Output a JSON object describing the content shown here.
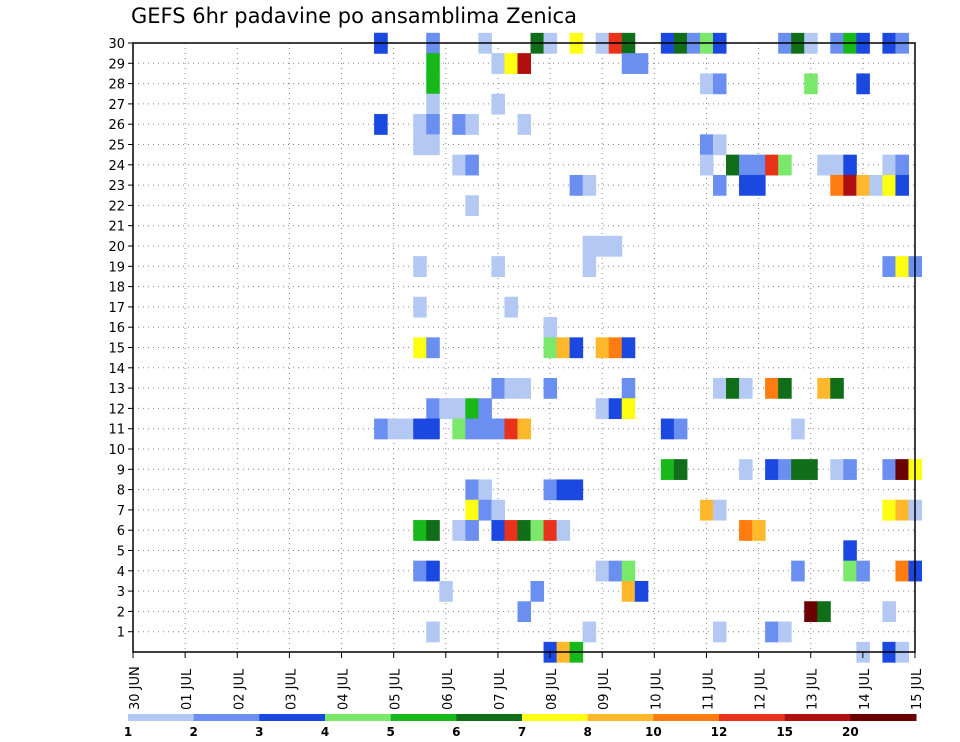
{
  "chart_data": {
    "type": "heatmap",
    "title": "GEFS 6hr padavine po ansamblima Zenica",
    "xlabel": "",
    "ylabel": "",
    "x_tick_labels": [
      "30 JUN",
      "01 JUL",
      "02 JUL",
      "03 JUL",
      "04 JUL",
      "05 JUL",
      "06 JUL",
      "07 JUL",
      "08 JUL",
      "09 JUL",
      "10 JUL",
      "11 JUL",
      "12 JUL",
      "13 JUL",
      "14 JUL",
      "15 JUL"
    ],
    "y_tick_labels": [
      "1",
      "2",
      "3",
      "4",
      "5",
      "6",
      "7",
      "8",
      "9",
      "10",
      "11",
      "12",
      "13",
      "14",
      "15",
      "16",
      "17",
      "18",
      "19",
      "20",
      "21",
      "22",
      "23",
      "24",
      "25",
      "26",
      "27",
      "28",
      "29",
      "30"
    ],
    "x_range_days": [
      0,
      15
    ],
    "y_range": [
      0,
      30
    ],
    "grid": true,
    "legend": {
      "position": "bottom",
      "labels": [
        "1",
        "2",
        "3",
        "4",
        "5",
        "6",
        "7",
        "8",
        "10",
        "12",
        "15",
        "20"
      ],
      "colors": [
        "#b3c8f2",
        "#6b8ff0",
        "#1a48e0",
        "#7ae86a",
        "#17b81a",
        "#0f6e17",
        "#ffff12",
        "#ffb72c",
        "#ff7d10",
        "#e8321a",
        "#b00f0f",
        "#6b0000"
      ]
    },
    "cells": [
      [
        4.75,
        30,
        2
      ],
      [
        4.75,
        30,
        2
      ],
      [
        5.75,
        30,
        0
      ],
      [
        5.75,
        30,
        1
      ],
      [
        6.75,
        30,
        0
      ],
      [
        7.75,
        30,
        5
      ],
      [
        8.0,
        30,
        0
      ],
      [
        8.5,
        30,
        6
      ],
      [
        9.0,
        30,
        0
      ],
      [
        9.25,
        30,
        9
      ],
      [
        9.5,
        30,
        5
      ],
      [
        10.25,
        30,
        2
      ],
      [
        10.5,
        30,
        5
      ],
      [
        10.75,
        30,
        1
      ],
      [
        11.0,
        30,
        3
      ],
      [
        11.25,
        30,
        2
      ],
      [
        12.5,
        30,
        1
      ],
      [
        12.75,
        30,
        5
      ],
      [
        13.0,
        30,
        0
      ],
      [
        13.5,
        30,
        1
      ],
      [
        13.75,
        30,
        4
      ],
      [
        14.0,
        30,
        2
      ],
      [
        14.5,
        30,
        2
      ],
      [
        14.75,
        30,
        1
      ],
      [
        5.75,
        29,
        4
      ],
      [
        7.0,
        29,
        0
      ],
      [
        7.25,
        29,
        6
      ],
      [
        7.5,
        29,
        10
      ],
      [
        9.5,
        29,
        1
      ],
      [
        9.75,
        29,
        1
      ],
      [
        5.75,
        28,
        4
      ],
      [
        11.0,
        28,
        0
      ],
      [
        11.25,
        28,
        1
      ],
      [
        13.0,
        28,
        3
      ],
      [
        14.0,
        28,
        2
      ],
      [
        5.75,
        27,
        0
      ],
      [
        7.0,
        27,
        0
      ],
      [
        4.75,
        26,
        2
      ],
      [
        5.5,
        26,
        0
      ],
      [
        5.75,
        26,
        1
      ],
      [
        6.25,
        26,
        1
      ],
      [
        6.5,
        26,
        0
      ],
      [
        7.5,
        26,
        0
      ],
      [
        5.5,
        25,
        0
      ],
      [
        5.75,
        25,
        0
      ],
      [
        11.0,
        25,
        1
      ],
      [
        11.25,
        25,
        0
      ],
      [
        6.25,
        24,
        0
      ],
      [
        6.5,
        24,
        1
      ],
      [
        11.0,
        24,
        0
      ],
      [
        11.5,
        24,
        5
      ],
      [
        11.75,
        24,
        1
      ],
      [
        12.0,
        24,
        1
      ],
      [
        12.25,
        24,
        9
      ],
      [
        12.5,
        24,
        3
      ],
      [
        13.25,
        24,
        0
      ],
      [
        13.5,
        24,
        0
      ],
      [
        13.75,
        24,
        2
      ],
      [
        14.5,
        24,
        0
      ],
      [
        14.75,
        24,
        1
      ],
      [
        8.5,
        23,
        1
      ],
      [
        8.75,
        23,
        0
      ],
      [
        11.25,
        23,
        1
      ],
      [
        11.75,
        23,
        2
      ],
      [
        12.0,
        23,
        2
      ],
      [
        13.5,
        23,
        8
      ],
      [
        13.75,
        23,
        10
      ],
      [
        14.0,
        23,
        7
      ],
      [
        14.25,
        23,
        0
      ],
      [
        14.5,
        23,
        6
      ],
      [
        14.75,
        23,
        2
      ],
      [
        6.5,
        22,
        0
      ],
      [
        8.75,
        20,
        0
      ],
      [
        9.0,
        20,
        0
      ],
      [
        9.25,
        20,
        0
      ],
      [
        5.5,
        19,
        0
      ],
      [
        7.0,
        19,
        0
      ],
      [
        8.75,
        19,
        0
      ],
      [
        14.5,
        19,
        1
      ],
      [
        14.75,
        19,
        6
      ],
      [
        15.0,
        19,
        1
      ],
      [
        5.5,
        17,
        0
      ],
      [
        7.25,
        17,
        0
      ],
      [
        8.0,
        16,
        0
      ],
      [
        5.5,
        15,
        6
      ],
      [
        5.75,
        15,
        1
      ],
      [
        8.0,
        15,
        3
      ],
      [
        8.25,
        15,
        7
      ],
      [
        8.5,
        15,
        2
      ],
      [
        9.0,
        15,
        7
      ],
      [
        9.25,
        15,
        8
      ],
      [
        9.5,
        15,
        2
      ],
      [
        7.0,
        13,
        1
      ],
      [
        7.25,
        13,
        0
      ],
      [
        7.5,
        13,
        0
      ],
      [
        8.0,
        13,
        1
      ],
      [
        9.5,
        13,
        1
      ],
      [
        11.25,
        13,
        0
      ],
      [
        11.5,
        13,
        5
      ],
      [
        11.75,
        13,
        0
      ],
      [
        12.25,
        13,
        8
      ],
      [
        12.5,
        13,
        5
      ],
      [
        13.25,
        13,
        7
      ],
      [
        13.5,
        13,
        5
      ],
      [
        5.75,
        12,
        1
      ],
      [
        6.0,
        12,
        0
      ],
      [
        6.25,
        12,
        0
      ],
      [
        6.5,
        12,
        4
      ],
      [
        6.75,
        12,
        1
      ],
      [
        9.0,
        12,
        0
      ],
      [
        9.25,
        12,
        2
      ],
      [
        9.5,
        12,
        6
      ],
      [
        5.0,
        11,
        0
      ],
      [
        5.25,
        11,
        0
      ],
      [
        5.5,
        11,
        2
      ],
      [
        5.75,
        11,
        2
      ],
      [
        6.25,
        11,
        3
      ],
      [
        6.5,
        11,
        1
      ],
      [
        6.75,
        11,
        1
      ],
      [
        7.0,
        11,
        1
      ],
      [
        7.25,
        11,
        9
      ],
      [
        7.5,
        11,
        7
      ],
      [
        10.25,
        11,
        2
      ],
      [
        10.5,
        11,
        1
      ],
      [
        12.75,
        11,
        0
      ],
      [
        4.75,
        11,
        1
      ],
      [
        10.25,
        9,
        4
      ],
      [
        10.5,
        9,
        5
      ],
      [
        11.75,
        9,
        0
      ],
      [
        12.25,
        9,
        2
      ],
      [
        12.5,
        9,
        1
      ],
      [
        12.75,
        9,
        5
      ],
      [
        13.0,
        9,
        5
      ],
      [
        13.5,
        9,
        0
      ],
      [
        13.75,
        9,
        1
      ],
      [
        14.5,
        9,
        1
      ],
      [
        14.75,
        9,
        11
      ],
      [
        15.0,
        9,
        6
      ],
      [
        6.5,
        8,
        1
      ],
      [
        6.75,
        8,
        0
      ],
      [
        8.0,
        8,
        1
      ],
      [
        8.25,
        8,
        2
      ],
      [
        8.5,
        8,
        2
      ],
      [
        6.5,
        7,
        6
      ],
      [
        6.75,
        7,
        1
      ],
      [
        7.0,
        7,
        0
      ],
      [
        11.0,
        7,
        7
      ],
      [
        11.25,
        7,
        0
      ],
      [
        14.5,
        7,
        6
      ],
      [
        14.75,
        7,
        7
      ],
      [
        15.0,
        7,
        0
      ],
      [
        5.5,
        6,
        4
      ],
      [
        5.75,
        6,
        5
      ],
      [
        6.25,
        6,
        0
      ],
      [
        6.5,
        6,
        1
      ],
      [
        7.0,
        6,
        2
      ],
      [
        7.25,
        6,
        9
      ],
      [
        7.5,
        6,
        5
      ],
      [
        7.75,
        6,
        3
      ],
      [
        8.0,
        6,
        9
      ],
      [
        8.25,
        6,
        0
      ],
      [
        11.75,
        6,
        8
      ],
      [
        12.0,
        6,
        7
      ],
      [
        13.75,
        5,
        2
      ],
      [
        5.5,
        4,
        1
      ],
      [
        5.75,
        4,
        2
      ],
      [
        9.0,
        4,
        0
      ],
      [
        9.25,
        4,
        1
      ],
      [
        9.5,
        4,
        3
      ],
      [
        12.75,
        4,
        1
      ],
      [
        13.75,
        4,
        3
      ],
      [
        14.0,
        4,
        1
      ],
      [
        14.75,
        4,
        8
      ],
      [
        15.0,
        4,
        2
      ],
      [
        6.0,
        3,
        0
      ],
      [
        7.75,
        3,
        1
      ],
      [
        9.5,
        3,
        7
      ],
      [
        9.75,
        3,
        2
      ],
      [
        7.5,
        2,
        1
      ],
      [
        13.0,
        2,
        11
      ],
      [
        13.25,
        2,
        5
      ],
      [
        14.5,
        2,
        0
      ],
      [
        5.75,
        1,
        0
      ],
      [
        8.75,
        1,
        0
      ],
      [
        11.25,
        1,
        0
      ],
      [
        12.25,
        1,
        1
      ],
      [
        12.5,
        1,
        0
      ],
      [
        8.0,
        0,
        2
      ],
      [
        8.25,
        0,
        7
      ],
      [
        8.5,
        0,
        4
      ],
      [
        14.0,
        0,
        0
      ],
      [
        14.5,
        0,
        2
      ],
      [
        14.75,
        0,
        0
      ]
    ]
  }
}
